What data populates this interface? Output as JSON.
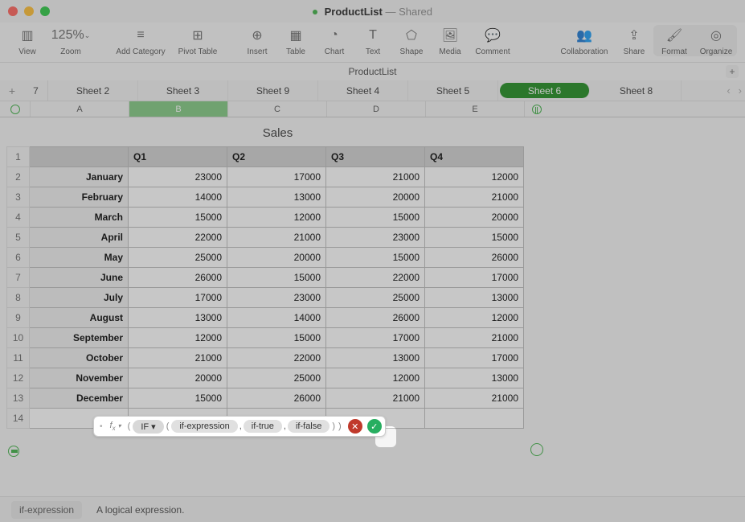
{
  "window": {
    "doc_title": "ProductList",
    "shared_label": "Shared",
    "separator": "—"
  },
  "traffic": {
    "close": "#ff5f57",
    "min": "#febc2e",
    "max": "#28c840"
  },
  "toolbar": {
    "view": "View",
    "zoom_value": "125%",
    "zoom": "Zoom",
    "add_category": "Add Category",
    "pivot": "Pivot Table",
    "insert": "Insert",
    "table": "Table",
    "chart": "Chart",
    "text": "Text",
    "shape": "Shape",
    "media": "Media",
    "comment": "Comment",
    "collaboration": "Collaboration",
    "share": "Share",
    "format": "Format",
    "organize": "Organize"
  },
  "sheet_title": "ProductList",
  "tabs": {
    "count": "7",
    "items": [
      "Sheet 2",
      "Sheet 3",
      "Sheet 9",
      "Sheet 4",
      "Sheet 5",
      "Sheet 6",
      "Sheet 8"
    ],
    "active_index": 5
  },
  "columns": [
    "A",
    "B",
    "C",
    "D",
    "E"
  ],
  "selected_col_index": 1,
  "table_title": "Sales",
  "headers": [
    "",
    "Q1",
    "Q2",
    "Q3",
    "Q4"
  ],
  "rows": [
    {
      "n": "1"
    },
    {
      "n": "2",
      "m": "January",
      "v": [
        "23000",
        "17000",
        "21000",
        "12000"
      ]
    },
    {
      "n": "3",
      "m": "February",
      "v": [
        "14000",
        "13000",
        "20000",
        "21000"
      ]
    },
    {
      "n": "4",
      "m": "March",
      "v": [
        "15000",
        "12000",
        "15000",
        "20000"
      ]
    },
    {
      "n": "5",
      "m": "April",
      "v": [
        "22000",
        "21000",
        "23000",
        "15000"
      ]
    },
    {
      "n": "6",
      "m": "May",
      "v": [
        "25000",
        "20000",
        "15000",
        "26000"
      ]
    },
    {
      "n": "7",
      "m": "June",
      "v": [
        "26000",
        "15000",
        "22000",
        "17000"
      ]
    },
    {
      "n": "8",
      "m": "July",
      "v": [
        "17000",
        "23000",
        "25000",
        "13000"
      ]
    },
    {
      "n": "9",
      "m": "August",
      "v": [
        "13000",
        "14000",
        "26000",
        "12000"
      ]
    },
    {
      "n": "10",
      "m": "September",
      "v": [
        "12000",
        "15000",
        "17000",
        "21000"
      ]
    },
    {
      "n": "11",
      "m": "October",
      "v": [
        "21000",
        "22000",
        "13000",
        "17000"
      ]
    },
    {
      "n": "12",
      "m": "November",
      "v": [
        "20000",
        "25000",
        "12000",
        "13000"
      ]
    },
    {
      "n": "13",
      "m": "December",
      "v": [
        "15000",
        "26000",
        "21000",
        "21000"
      ]
    },
    {
      "n": "14"
    }
  ],
  "formula": {
    "fn": "IF ▾",
    "args": [
      "if-expression",
      "if-true",
      "if-false"
    ]
  },
  "status": {
    "token": "if-expression",
    "desc": "A logical expression."
  }
}
